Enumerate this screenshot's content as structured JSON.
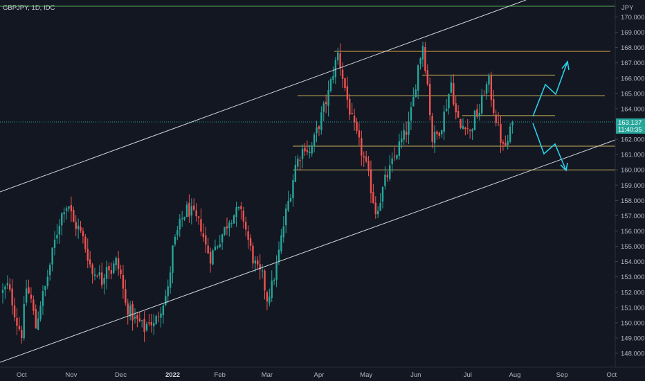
{
  "header": {
    "symbol_label": "GBPJPY, 1D, IDC"
  },
  "price_scale": {
    "currency": "JPY"
  },
  "last_price": {
    "price": "163.137",
    "countdown": "11:40:35"
  },
  "colors": {
    "background": "#131722",
    "up": "#26a69a",
    "down": "#ef5350",
    "channel": "#d1d4dc",
    "level": "#c8b35a",
    "level_alt": "#c9963f",
    "top_line": "#4caf50",
    "arrow": "#2ad1e8",
    "axis_text": "#b2b5be",
    "price_tag": "#26a69a"
  },
  "chart_data": {
    "type": "candlestick",
    "title": "GBPJPY, 1D, IDC",
    "ylim": [
      147.0,
      171.0
    ],
    "y_ticks": [
      "148.000",
      "149.000",
      "150.000",
      "151.000",
      "152.000",
      "153.000",
      "154.000",
      "155.000",
      "156.000",
      "157.000",
      "158.000",
      "159.000",
      "160.000",
      "161.000",
      "162.000",
      "163.000",
      "164.000",
      "165.000",
      "166.000",
      "167.000",
      "168.000",
      "169.000",
      "170.000"
    ],
    "x_ticks": [
      {
        "label": "Oct",
        "idx": 8
      },
      {
        "label": "Nov",
        "idx": 29
      },
      {
        "label": "Dec",
        "idx": 50
      },
      {
        "label": "2022",
        "idx": 72
      },
      {
        "label": "Feb",
        "idx": 92
      },
      {
        "label": "Mar",
        "idx": 112
      },
      {
        "label": "Apr",
        "idx": 134
      },
      {
        "label": "May",
        "idx": 154
      },
      {
        "label": "Jun",
        "idx": 175
      },
      {
        "label": "Jul",
        "idx": 197
      },
      {
        "label": "Aug",
        "idx": 217
      },
      {
        "label": "Sep",
        "idx": 237
      },
      {
        "label": "Oct",
        "idx": 258
      }
    ],
    "anchors": [
      [
        0,
        152.0
      ],
      [
        2,
        152.4
      ],
      [
        4,
        151.4
      ],
      [
        6,
        150.0
      ],
      [
        8,
        149.3
      ],
      [
        10,
        152.3
      ],
      [
        12,
        151.5
      ],
      [
        14,
        149.7
      ],
      [
        16,
        151.3
      ],
      [
        18,
        152.3
      ],
      [
        20,
        153.8
      ],
      [
        22,
        155.3
      ],
      [
        24,
        156.6
      ],
      [
        26,
        157.6
      ],
      [
        28,
        157.7
      ],
      [
        30,
        156.5
      ],
      [
        32,
        156.2
      ],
      [
        34,
        155.5
      ],
      [
        36,
        154.4
      ],
      [
        38,
        153.2
      ],
      [
        40,
        153.4
      ],
      [
        42,
        152.7
      ],
      [
        44,
        153.9
      ],
      [
        46,
        153.4
      ],
      [
        48,
        154.0
      ],
      [
        50,
        153.1
      ],
      [
        52,
        151.2
      ],
      [
        54,
        150.7
      ],
      [
        56,
        150.2
      ],
      [
        58,
        150.0
      ],
      [
        60,
        149.6
      ],
      [
        62,
        150.2
      ],
      [
        64,
        149.8
      ],
      [
        66,
        150.6
      ],
      [
        68,
        151.4
      ],
      [
        70,
        152.1
      ],
      [
        72,
        154.8
      ],
      [
        74,
        155.9
      ],
      [
        76,
        156.8
      ],
      [
        78,
        157.4
      ],
      [
        80,
        157.2
      ],
      [
        82,
        156.7
      ],
      [
        84,
        156.3
      ],
      [
        86,
        155.0
      ],
      [
        88,
        154.3
      ],
      [
        90,
        154.9
      ],
      [
        92,
        155.5
      ],
      [
        94,
        156.1
      ],
      [
        96,
        156.8
      ],
      [
        98,
        157.1
      ],
      [
        100,
        157.3
      ],
      [
        102,
        156.8
      ],
      [
        104,
        155.4
      ],
      [
        106,
        154.2
      ],
      [
        108,
        153.4
      ],
      [
        110,
        153.0
      ],
      [
        112,
        151.6
      ],
      [
        114,
        152.4
      ],
      [
        116,
        153.7
      ],
      [
        118,
        155.5
      ],
      [
        120,
        157.2
      ],
      [
        122,
        158.6
      ],
      [
        124,
        160.3
      ],
      [
        126,
        161.0
      ],
      [
        128,
        161.6
      ],
      [
        130,
        161.1
      ],
      [
        132,
        162.0
      ],
      [
        134,
        163.0
      ],
      [
        136,
        164.0
      ],
      [
        138,
        165.0
      ],
      [
        140,
        166.4
      ],
      [
        142,
        167.6
      ],
      [
        144,
        166.1
      ],
      [
        146,
        164.6
      ],
      [
        148,
        163.2
      ],
      [
        150,
        162.2
      ],
      [
        152,
        161.2
      ],
      [
        154,
        160.2
      ],
      [
        156,
        158.8
      ],
      [
        158,
        157.3
      ],
      [
        160,
        158.1
      ],
      [
        162,
        159.3
      ],
      [
        164,
        160.0
      ],
      [
        166,
        160.8
      ],
      [
        168,
        161.6
      ],
      [
        170,
        162.2
      ],
      [
        172,
        162.9
      ],
      [
        174,
        164.6
      ],
      [
        176,
        166.8
      ],
      [
        178,
        168.2
      ],
      [
        180,
        165.6
      ],
      [
        182,
        162.0
      ],
      [
        184,
        162.3
      ],
      [
        186,
        163.0
      ],
      [
        188,
        164.3
      ],
      [
        190,
        165.7
      ],
      [
        192,
        163.7
      ],
      [
        194,
        162.7
      ],
      [
        196,
        163.1
      ],
      [
        198,
        162.4
      ],
      [
        200,
        163.5
      ],
      [
        202,
        163.8
      ],
      [
        204,
        165.2
      ],
      [
        206,
        165.7
      ],
      [
        208,
        164.0
      ],
      [
        210,
        162.7
      ],
      [
        212,
        161.4
      ],
      [
        214,
        161.8
      ],
      [
        216,
        163.1
      ]
    ]
  }
}
